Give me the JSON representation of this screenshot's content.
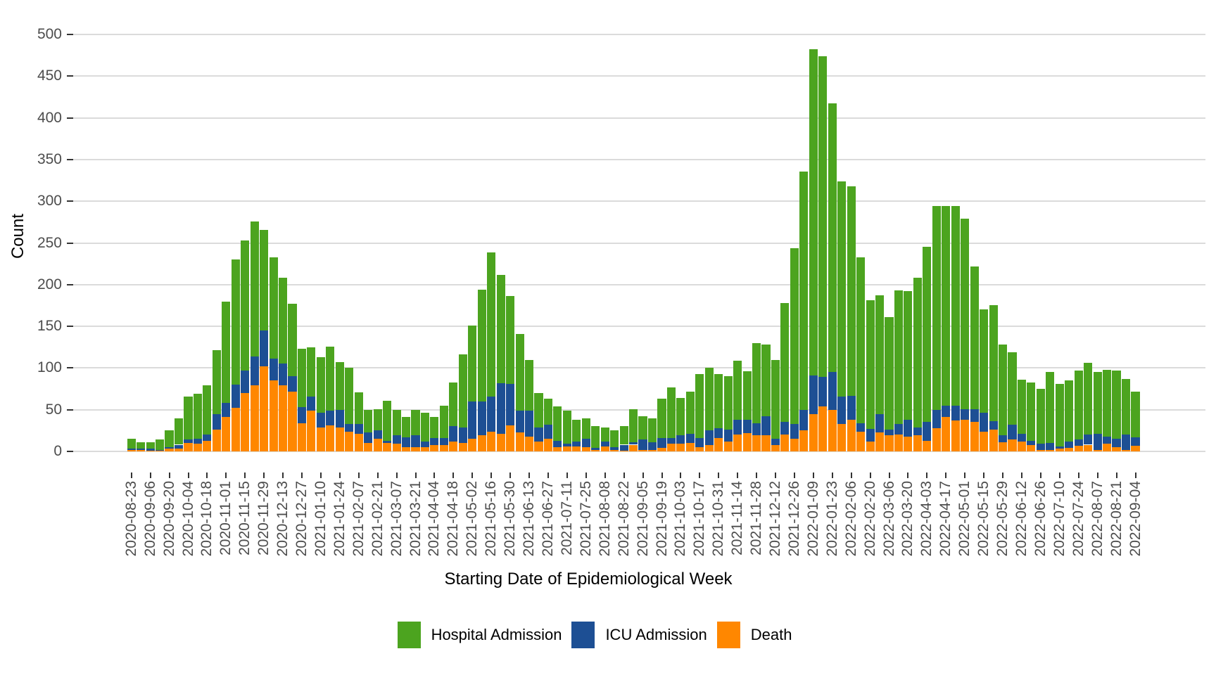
{
  "legend": [
    {
      "label": "Hospital Admission",
      "color": "#4ca41f"
    },
    {
      "label": "ICU Admission",
      "color": "#1d4f94"
    },
    {
      "label": "Death",
      "color": "#ff8700"
    }
  ],
  "chart_data": {
    "type": "bar",
    "stacked": true,
    "xlabel": "Starting Date of Epidemiological Week",
    "ylabel": "Count",
    "ylim": [
      0,
      500
    ],
    "y_tick_step": 50,
    "y_tick_labels": [
      "0",
      "50",
      "100",
      "150",
      "200",
      "250",
      "300",
      "350",
      "400",
      "450",
      "500"
    ],
    "x_tick_label_every": 2,
    "grid": "horizontal",
    "legend_position": "bottom",
    "stack_order_bottom_to_top": [
      "Death",
      "ICU Admission",
      "Hospital Admission"
    ],
    "categories": [
      "2020-08-23",
      "2020-08-30",
      "2020-09-06",
      "2020-09-13",
      "2020-09-20",
      "2020-09-27",
      "2020-10-04",
      "2020-10-11",
      "2020-10-18",
      "2020-10-25",
      "2020-11-01",
      "2020-11-08",
      "2020-11-15",
      "2020-11-22",
      "2020-11-29",
      "2020-12-06",
      "2020-12-13",
      "2020-12-20",
      "2020-12-27",
      "2021-01-03",
      "2021-01-10",
      "2021-01-17",
      "2021-01-24",
      "2021-01-31",
      "2021-02-07",
      "2021-02-14",
      "2021-02-21",
      "2021-02-28",
      "2021-03-07",
      "2021-03-14",
      "2021-03-21",
      "2021-03-28",
      "2021-04-04",
      "2021-04-11",
      "2021-04-18",
      "2021-04-25",
      "2021-05-02",
      "2021-05-09",
      "2021-05-16",
      "2021-05-23",
      "2021-05-30",
      "2021-06-06",
      "2021-06-13",
      "2021-06-20",
      "2021-06-27",
      "2021-07-04",
      "2021-07-11",
      "2021-07-18",
      "2021-07-25",
      "2021-08-01",
      "2021-08-08",
      "2021-08-15",
      "2021-08-22",
      "2021-08-29",
      "2021-09-05",
      "2021-09-12",
      "2021-09-19",
      "2021-09-26",
      "2021-10-03",
      "2021-10-10",
      "2021-10-17",
      "2021-10-24",
      "2021-10-31",
      "2021-11-07",
      "2021-11-14",
      "2021-11-21",
      "2021-11-28",
      "2021-12-05",
      "2021-12-12",
      "2021-12-19",
      "2021-12-26",
      "2022-01-02",
      "2022-01-09",
      "2022-01-16",
      "2022-01-23",
      "2022-01-30",
      "2022-02-06",
      "2022-02-13",
      "2022-02-20",
      "2022-02-27",
      "2022-03-06",
      "2022-03-13",
      "2022-03-20",
      "2022-03-27",
      "2022-04-03",
      "2022-04-10",
      "2022-04-17",
      "2022-04-24",
      "2022-05-01",
      "2022-05-08",
      "2022-05-15",
      "2022-05-22",
      "2022-05-29",
      "2022-06-05",
      "2022-06-12",
      "2022-06-19",
      "2022-06-26",
      "2022-07-03",
      "2022-07-10",
      "2022-07-17",
      "2022-07-24",
      "2022-07-31",
      "2022-08-07",
      "2022-08-14",
      "2022-08-21",
      "2022-08-28",
      "2022-09-04"
    ],
    "series": [
      {
        "name": "Death",
        "color": "#ff8700",
        "values": [
          2,
          2,
          1,
          1,
          3,
          3,
          10,
          9,
          13,
          26,
          41,
          52,
          70,
          79,
          102,
          85,
          79,
          72,
          34,
          49,
          29,
          31,
          29,
          24,
          21,
          10,
          15,
          10,
          9,
          5,
          5,
          5,
          8,
          8,
          12,
          10,
          15,
          19,
          24,
          21,
          31,
          23,
          18,
          12,
          15,
          5,
          6,
          6,
          5,
          2,
          6,
          2,
          1,
          8,
          2,
          2,
          4,
          9,
          9,
          10,
          5,
          8,
          16,
          12,
          20,
          22,
          19,
          19,
          8,
          20,
          15,
          25,
          45,
          54,
          50,
          33,
          38,
          24,
          12,
          23,
          19,
          20,
          18,
          19,
          13,
          28,
          41,
          37,
          38,
          35,
          24,
          26,
          11,
          14,
          12,
          8,
          2,
          2,
          3,
          4,
          7,
          8,
          2,
          9,
          5,
          2,
          7
        ]
      },
      {
        "name": "ICU Admission",
        "color": "#1d4f94",
        "values": [
          1,
          1,
          2,
          1,
          2,
          5,
          4,
          6,
          7,
          19,
          17,
          28,
          27,
          35,
          43,
          26,
          26,
          18,
          19,
          17,
          17,
          18,
          21,
          9,
          12,
          13,
          10,
          3,
          10,
          12,
          14,
          7,
          8,
          8,
          18,
          19,
          45,
          41,
          42,
          61,
          50,
          26,
          31,
          17,
          17,
          8,
          3,
          6,
          10,
          2,
          6,
          3,
          7,
          3,
          12,
          9,
          12,
          7,
          10,
          11,
          11,
          17,
          12,
          14,
          18,
          16,
          15,
          23,
          7,
          15,
          18,
          25,
          46,
          35,
          45,
          33,
          29,
          10,
          15,
          22,
          7,
          13,
          20,
          10,
          22,
          22,
          14,
          18,
          13,
          16,
          22,
          10,
          8,
          18,
          9,
          5,
          7,
          8,
          3,
          8,
          7,
          12,
          19,
          9,
          10,
          18,
          10
        ]
      },
      {
        "name": "Hospital Admission",
        "color": "#4ca41f",
        "values": [
          12,
          8,
          8,
          12,
          20,
          32,
          52,
          54,
          59,
          76,
          122,
          150,
          156,
          162,
          121,
          122,
          103,
          87,
          70,
          59,
          67,
          77,
          57,
          67,
          38,
          27,
          26,
          48,
          31,
          24,
          31,
          34,
          25,
          39,
          53,
          87,
          91,
          134,
          173,
          130,
          105,
          92,
          61,
          41,
          31,
          41,
          40,
          26,
          25,
          26,
          17,
          20,
          22,
          40,
          28,
          29,
          47,
          61,
          45,
          51,
          77,
          75,
          65,
          64,
          71,
          58,
          96,
          86,
          95,
          143,
          211,
          286,
          391,
          385,
          322,
          258,
          251,
          199,
          154,
          142,
          135,
          160,
          154,
          179,
          210,
          244,
          239,
          239,
          228,
          171,
          124,
          139,
          109,
          87,
          65,
          70,
          66,
          85,
          75,
          73,
          83,
          86,
          74,
          80,
          82,
          67,
          55
        ]
      }
    ]
  }
}
